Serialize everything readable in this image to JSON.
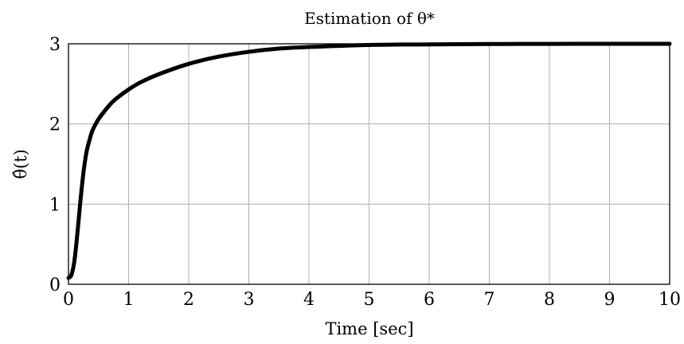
{
  "chart_data": {
    "type": "line",
    "title": "Estimation of θ*",
    "xlabel": "Time [sec]",
    "ylabel": "θ̂(t)",
    "xlim": [
      0,
      10
    ],
    "ylim": [
      0,
      3
    ],
    "xticks": [
      "0",
      "1",
      "2",
      "3",
      "4",
      "5",
      "6",
      "7",
      "8",
      "9",
      "10"
    ],
    "yticks": [
      "0",
      "1",
      "2",
      "3"
    ],
    "grid": true,
    "series": [
      {
        "color": "#000000",
        "x": [
          0,
          0.05,
          0.1,
          0.15,
          0.2,
          0.25,
          0.3,
          0.35,
          0.4,
          0.5,
          0.6,
          0.7,
          0.8,
          1.0,
          1.2,
          1.5,
          2.0,
          2.5,
          3.0,
          3.5,
          4.0,
          5.0,
          6.0,
          7.0,
          8.0,
          9.0,
          10.0
        ],
        "y": [
          0.08,
          0.12,
          0.3,
          0.65,
          1.05,
          1.4,
          1.65,
          1.8,
          1.92,
          2.06,
          2.16,
          2.25,
          2.32,
          2.43,
          2.52,
          2.62,
          2.75,
          2.84,
          2.9,
          2.94,
          2.96,
          2.985,
          2.993,
          2.997,
          2.999,
          3.0,
          3.0
        ]
      }
    ]
  }
}
